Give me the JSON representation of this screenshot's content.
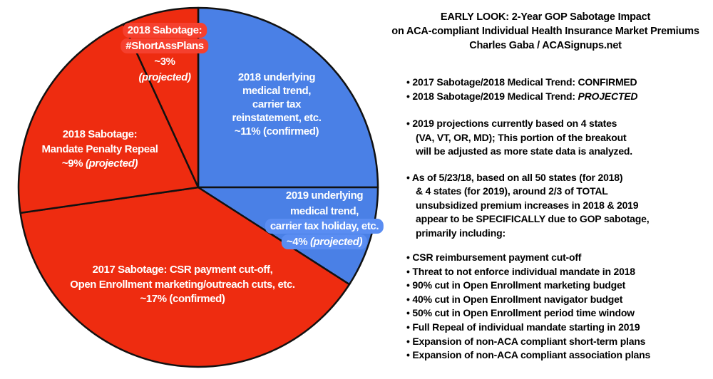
{
  "panel": {
    "title_lines": [
      "EARLY LOOK: 2-Year GOP Sabotage Impact",
      "on ACA-compliant Individual Health Insurance Market Premiums",
      "Charles Gaba / ACASignups.net"
    ],
    "legend": [
      {
        "prefix": "• 2017 Sabotage/2018 Medical Trend: ",
        "status": "CONFIRMED"
      },
      {
        "prefix": "• 2018 Sabotage/2019 Medical Trend: ",
        "status": "PROJECTED"
      }
    ],
    "states_note_lines": [
      "• 2019 projections currently based on 4 states",
      "(VA, VT, OR, MD); This portion of the breakout",
      "will be adjusted as more state data is analyzed."
    ],
    "asof_note_lines": [
      "• As of 5/23/18, based on all 50 states (for 2018)",
      "& 4 states (for 2019), around 2/3 of TOTAL",
      "unsubsidized premium increases in 2018 & 2019",
      "appear to be SPECIFICALLY due to GOP sabotage,",
      "primarily including:"
    ],
    "sabotage_items": [
      "• CSR reimbursement payment cut-off",
      "• Threat to not enforce individual mandate in 2018",
      "• 90% cut in Open Enrollment marketing budget",
      "• 40% cut in Open Enrollment navigator budget",
      "• 50% cut in Open Enrollment period time window",
      "• Full Repeal of individual mandate starting in 2019",
      "• Expansion of non-ACA compliant short-term plans",
      "• Expansion of non-ACA compliant association plans"
    ]
  },
  "colors": {
    "pie_red": "#ee2c10",
    "pie_blue": "#4a80e6",
    "chip_red": "#f5402e",
    "chip_blue": "#5a8df2",
    "outline": "#111111",
    "pie_text": "#ffffff",
    "panel_text": "#000000"
  },
  "chart_data": {
    "type": "pie",
    "note": "Slice sizes proportional to approximate premium-increase percentage points (values sum to ~44%)",
    "start_angle_deg": 0,
    "direction": "clockwise",
    "slices": [
      {
        "name": "2018 underlying medical trend, carrier tax reinstatement, etc.",
        "value": 11,
        "unit": "%",
        "status": "confirmed",
        "color": "#4a80e6",
        "lines": [
          "2018 underlying",
          "medical trend,",
          "carrier tax",
          "reinstatement, etc."
        ],
        "pct_line": "~11% (confirmed)"
      },
      {
        "name": "2019 underlying medical trend, carrier tax holiday, etc.",
        "value": 4,
        "unit": "%",
        "status": "projected",
        "color": "#4a80e6",
        "lines": [
          "2019 underlying",
          "medical trend,",
          "carrier tax holiday, etc."
        ],
        "pct": "~4%",
        "status_label": "(projected)"
      },
      {
        "name": "2017 Sabotage: CSR payment cut-off, Open Enrollment marketing/outreach cuts, etc.",
        "value": 17,
        "unit": "%",
        "status": "confirmed",
        "color": "#ee2c10",
        "lines": [
          "2017 Sabotage: CSR payment cut-off,",
          "Open Enrollment marketing/outreach cuts, etc."
        ],
        "pct_line": "~17% (confirmed)"
      },
      {
        "name": "2018 Sabotage: Mandate Penalty Repeal",
        "value": 9,
        "unit": "%",
        "status": "projected",
        "color": "#ee2c10",
        "lines": [
          "2018 Sabotage:",
          "Mandate Penalty Repeal"
        ],
        "pct": "~9%",
        "status_label": "(projected)"
      },
      {
        "name": "2018 Sabotage: #ShortAssPlans",
        "value": 3,
        "unit": "%",
        "status": "projected",
        "color": "#ee2c10",
        "lines": [
          "2018 Sabotage:",
          "#ShortAssPlans"
        ],
        "pct": "~3%",
        "status_label": "(projected)"
      }
    ]
  }
}
